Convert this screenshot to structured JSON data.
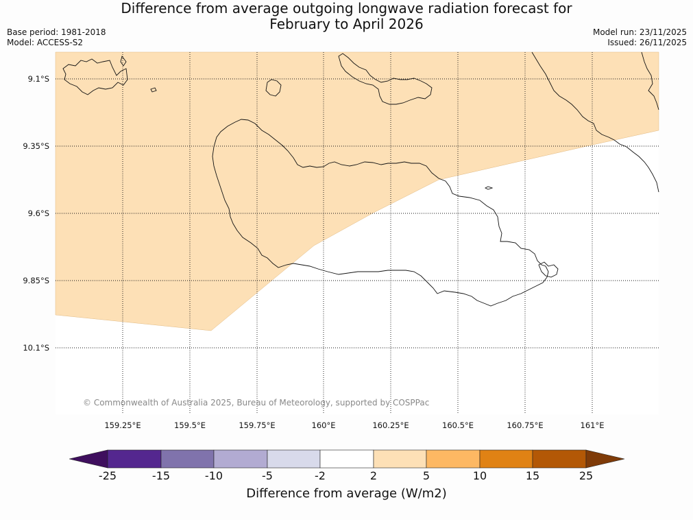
{
  "title": {
    "line1": "Difference from average outgoing longwave radiation forecast for",
    "line2": "February to April 2026"
  },
  "meta": {
    "base_period": "Base period: 1981-2018",
    "model": "Model: ACCESS-S2",
    "model_run": "Model run: 23/11/2025",
    "issued": "Issued: 26/11/2025"
  },
  "map": {
    "lat_labels": [
      "9.1°S",
      "9.35°S",
      "9.6°S",
      "9.85°S",
      "10.1°S"
    ],
    "lon_labels": [
      "159.25°E",
      "159.5°E",
      "159.75°E",
      "160°E",
      "160.25°E",
      "160.5°E",
      "160.75°E",
      "161°E"
    ],
    "copyright": "© Commonwealth of Australia 2025, Bureau of Meteorology, supported by COSPPac",
    "shaded_category": "2 to 5",
    "shaded_color": "#fde0b6"
  },
  "colorbar": {
    "title": "Difference from average (W/m2)",
    "ticks": [
      "-25",
      "-15",
      "-10",
      "-5",
      "-2",
      "2",
      "5",
      "10",
      "15",
      "25"
    ],
    "colors": [
      "#3f0f5e",
      "#54278f",
      "#8073ac",
      "#b2abd2",
      "#d8daeb",
      "#ffffff",
      "#fde0b6",
      "#fdb863",
      "#e08214",
      "#b35806",
      "#7f3b08"
    ]
  }
}
